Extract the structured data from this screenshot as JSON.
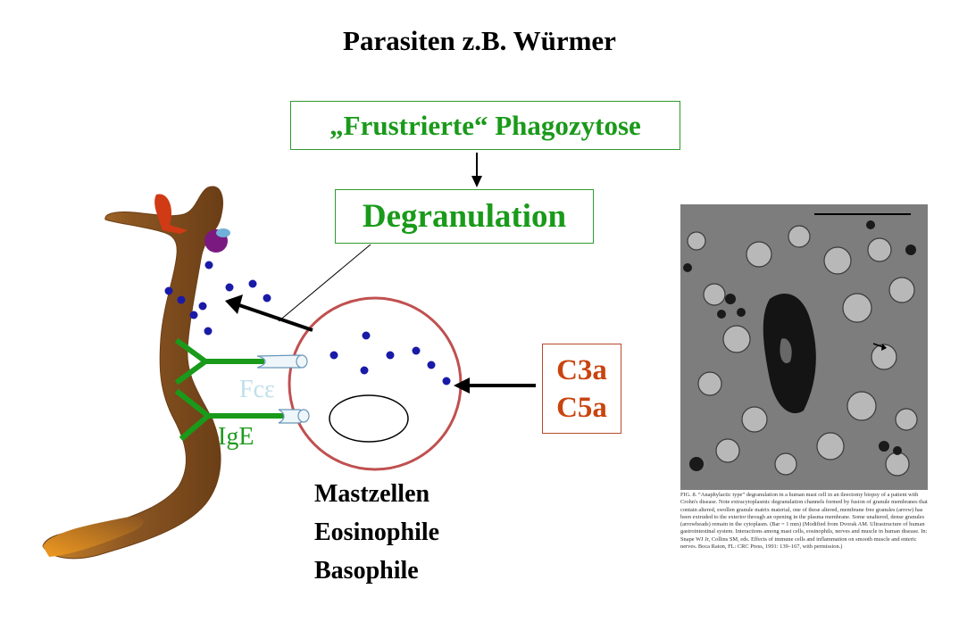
{
  "title": "Parasiten z.B. Würmer",
  "boxes": {
    "frustrated": "„Frustrierte“ Phagozytose",
    "degranulation": "Degranulation"
  },
  "complement": {
    "line1": "C3a",
    "line2": "C5a"
  },
  "labels": {
    "fce": "Fcε",
    "ige": "IgE"
  },
  "cells": [
    "Mastzellen",
    "Eosinophile",
    "Basophile"
  ],
  "micrograph": {
    "caption": "FIG. 8. “Anaphylactic type” degranulation in a human mast cell in an ileectomy biopsy of a patient with Crohn's disease. Note extracytoplasmic degranulation channels formed by fusion of granule membranes that contain altered, swollen granule matrix material, one of these altered, membrane free granules (arrow) has been extruded to the exterior through an opening in the plasma membrane. Some unaltered, dense granules (arrowheads) remain in the cytoplasm. (Bar = 1 mm) (Modified from Dvorak AM. Ultrastructure of human gastrointestinal system. Interactions among mast cells, eosinophils, nerves and muscle in human disease. In: Snape WJ Jr, Collins SM, eds. Effects of immune cells and inflammation on smooth muscle and enteric nerves. Boca Raton, FL: CRC Press, 1991: 139–167, with permission.)"
  },
  "colors": {
    "green": "#1a9a1a",
    "worm": "#a0642a",
    "red": "#c8440f",
    "granule": "#1a1aa8",
    "cell": "#c05050"
  }
}
